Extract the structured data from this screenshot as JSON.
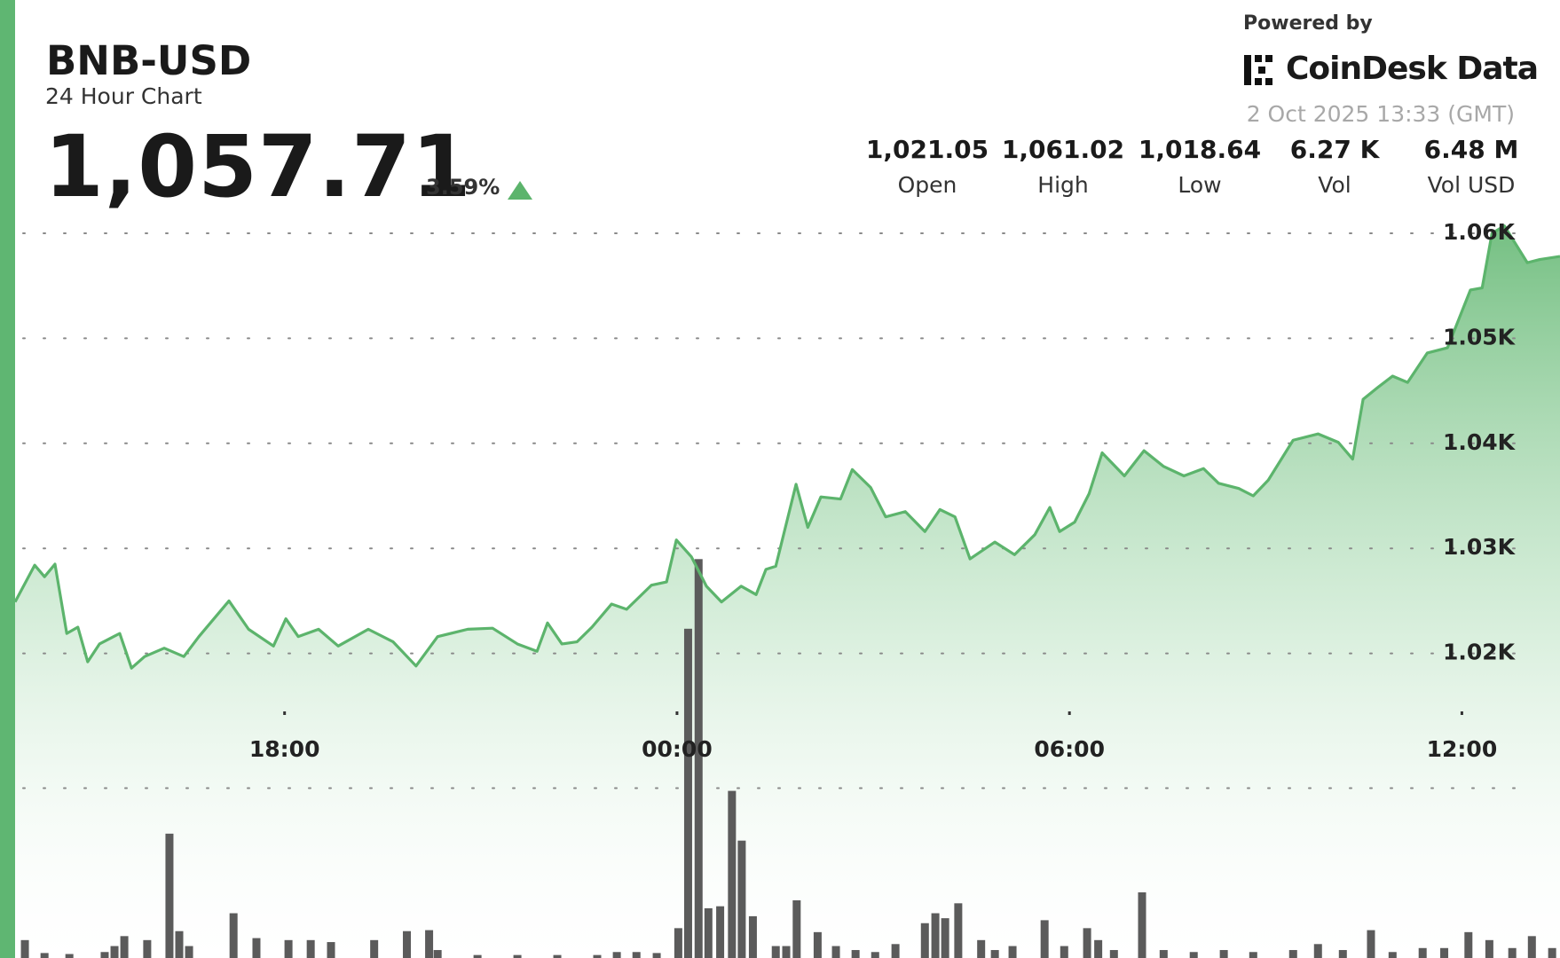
{
  "header": {
    "symbol": "BNB-USD",
    "subtitle": "24 Hour Chart",
    "price": "1,057.71",
    "change": "3.59%",
    "powered_by": "Powered by",
    "brand": "CoinDesk Data",
    "timestamp": "2 Oct 2025 13:33 (GMT)",
    "stats": [
      {
        "value": "1,021.05",
        "label": "Open"
      },
      {
        "value": "1,061.02",
        "label": "High"
      },
      {
        "value": "1,018.64",
        "label": "Low"
      },
      {
        "value": "6.27 K",
        "label": "Vol"
      },
      {
        "value": "6.48 M",
        "label": "Vol USD"
      }
    ]
  },
  "chart_data": {
    "type": "line",
    "grid": true,
    "fill": true,
    "xlim": [
      13.88,
      37.5
    ],
    "ylim": [
      991,
      1062
    ],
    "y2lim": [
      0,
      420
    ],
    "xticks": [
      {
        "value": 18,
        "label": "18:00"
      },
      {
        "value": 24,
        "label": "00:00"
      },
      {
        "value": 30,
        "label": "06:00"
      },
      {
        "value": 36,
        "label": "12:00"
      }
    ],
    "yticks": [
      {
        "value": 1020,
        "label": "1.02K"
      },
      {
        "value": 1030,
        "label": "1.03K"
      },
      {
        "value": 1040,
        "label": "1.04K"
      },
      {
        "value": 1050,
        "label": "1.05K"
      },
      {
        "value": 1060,
        "label": "1.06K"
      }
    ],
    "series": [
      {
        "type": "line",
        "color": "#5cb46c",
        "x": [
          13.88,
          14.18,
          14.33,
          14.49,
          14.67,
          14.84,
          14.99,
          15.17,
          15.48,
          15.66,
          15.86,
          16.16,
          16.46,
          16.69,
          17.15,
          17.45,
          17.83,
          18.02,
          18.21,
          18.52,
          18.82,
          19.28,
          19.66,
          20.01,
          20.34,
          20.8,
          21.18,
          21.56,
          21.86,
          22.02,
          22.24,
          22.47,
          22.7,
          23.0,
          23.23,
          23.61,
          23.84,
          23.99,
          24.22,
          24.45,
          24.68,
          24.98,
          25.21,
          25.36,
          25.51,
          25.82,
          26.0,
          26.2,
          26.5,
          26.68,
          26.96,
          27.19,
          27.49,
          27.79,
          28.02,
          28.25,
          28.48,
          28.86,
          29.16,
          29.47,
          29.7,
          29.85,
          30.08,
          30.3,
          30.5,
          30.84,
          31.14,
          31.44,
          31.75,
          32.05,
          32.28,
          32.59,
          32.81,
          33.04,
          33.42,
          33.8,
          34.11,
          34.33,
          34.49,
          34.71,
          34.94,
          35.17,
          35.47,
          35.78,
          36.13,
          36.31,
          36.46,
          36.65,
          37.0,
          37.19,
          37.5
        ],
        "values": [
          1024.9,
          1028.4,
          1027.3,
          1028.5,
          1021.9,
          1022.5,
          1019.2,
          1020.9,
          1021.9,
          1018.6,
          1019.7,
          1020.5,
          1019.7,
          1021.6,
          1025.0,
          1022.3,
          1020.7,
          1023.3,
          1021.6,
          1022.3,
          1020.7,
          1022.3,
          1021.1,
          1018.8,
          1021.6,
          1022.3,
          1022.4,
          1020.9,
          1020.2,
          1022.9,
          1020.9,
          1021.1,
          1022.5,
          1024.7,
          1024.2,
          1026.5,
          1026.8,
          1030.8,
          1029.2,
          1026.4,
          1024.9,
          1026.4,
          1025.6,
          1028.0,
          1028.3,
          1036.1,
          1032.0,
          1034.9,
          1034.7,
          1037.5,
          1035.8,
          1033.0,
          1033.5,
          1031.6,
          1033.7,
          1033.0,
          1029.0,
          1030.6,
          1029.4,
          1031.3,
          1033.9,
          1031.6,
          1032.5,
          1035.2,
          1039.1,
          1036.9,
          1039.3,
          1037.8,
          1036.9,
          1037.6,
          1036.2,
          1035.7,
          1035.0,
          1036.5,
          1040.3,
          1040.9,
          1040.1,
          1038.5,
          1044.2,
          1045.3,
          1046.4,
          1045.8,
          1048.6,
          1049.1,
          1054.6,
          1054.8,
          1060.0,
          1060.7,
          1057.2,
          1057.5,
          1057.8
        ]
      },
      {
        "type": "bar",
        "axis": "y2",
        "color": "#5b5b5b",
        "x": [
          14.03,
          14.33,
          14.71,
          15.25,
          15.4,
          15.55,
          15.9,
          16.24,
          16.39,
          16.54,
          17.22,
          17.57,
          18.06,
          18.4,
          18.71,
          19.37,
          19.87,
          20.21,
          20.34,
          20.95,
          21.56,
          22.17,
          22.78,
          23.08,
          23.38,
          23.69,
          24.02,
          24.17,
          24.33,
          24.48,
          24.66,
          24.84,
          24.99,
          25.16,
          25.51,
          25.67,
          25.83,
          26.15,
          26.43,
          26.73,
          27.03,
          27.34,
          27.79,
          27.95,
          28.1,
          28.3,
          28.65,
          28.86,
          29.13,
          29.62,
          29.92,
          30.27,
          30.44,
          30.68,
          31.11,
          31.44,
          31.9,
          32.36,
          32.81,
          33.42,
          33.8,
          34.18,
          34.61,
          34.94,
          35.4,
          35.73,
          36.1,
          36.42,
          36.77,
          37.07,
          37.38
        ],
        "values": [
          18,
          5,
          4,
          6,
          12,
          22,
          18,
          125,
          27,
          12,
          45,
          20,
          18,
          18,
          16,
          18,
          27,
          28,
          8,
          3,
          3,
          3,
          3,
          6,
          6,
          5,
          30,
          331,
          401,
          50,
          52,
          168,
          118,
          42,
          12,
          12,
          58,
          26,
          12,
          8,
          6,
          14,
          35,
          45,
          40,
          55,
          18,
          8,
          12,
          38,
          12,
          30,
          18,
          8,
          66,
          8,
          6,
          8,
          6,
          8,
          14,
          8,
          28,
          6,
          10,
          10,
          26,
          18,
          10,
          22,
          10
        ]
      }
    ]
  }
}
